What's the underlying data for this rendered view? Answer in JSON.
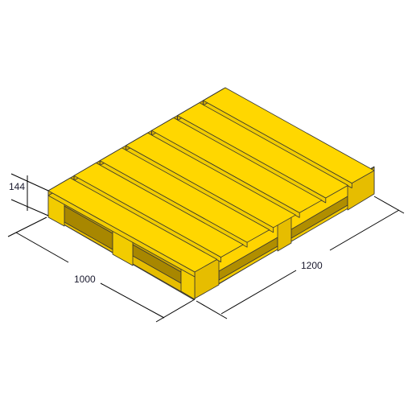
{
  "dimensions": {
    "height": "144",
    "width": "1000",
    "length": "1200"
  },
  "colors": {
    "top": "#ffd700",
    "side": "#f2cc00",
    "dark": "#d4ad00",
    "edge": "#333333"
  }
}
